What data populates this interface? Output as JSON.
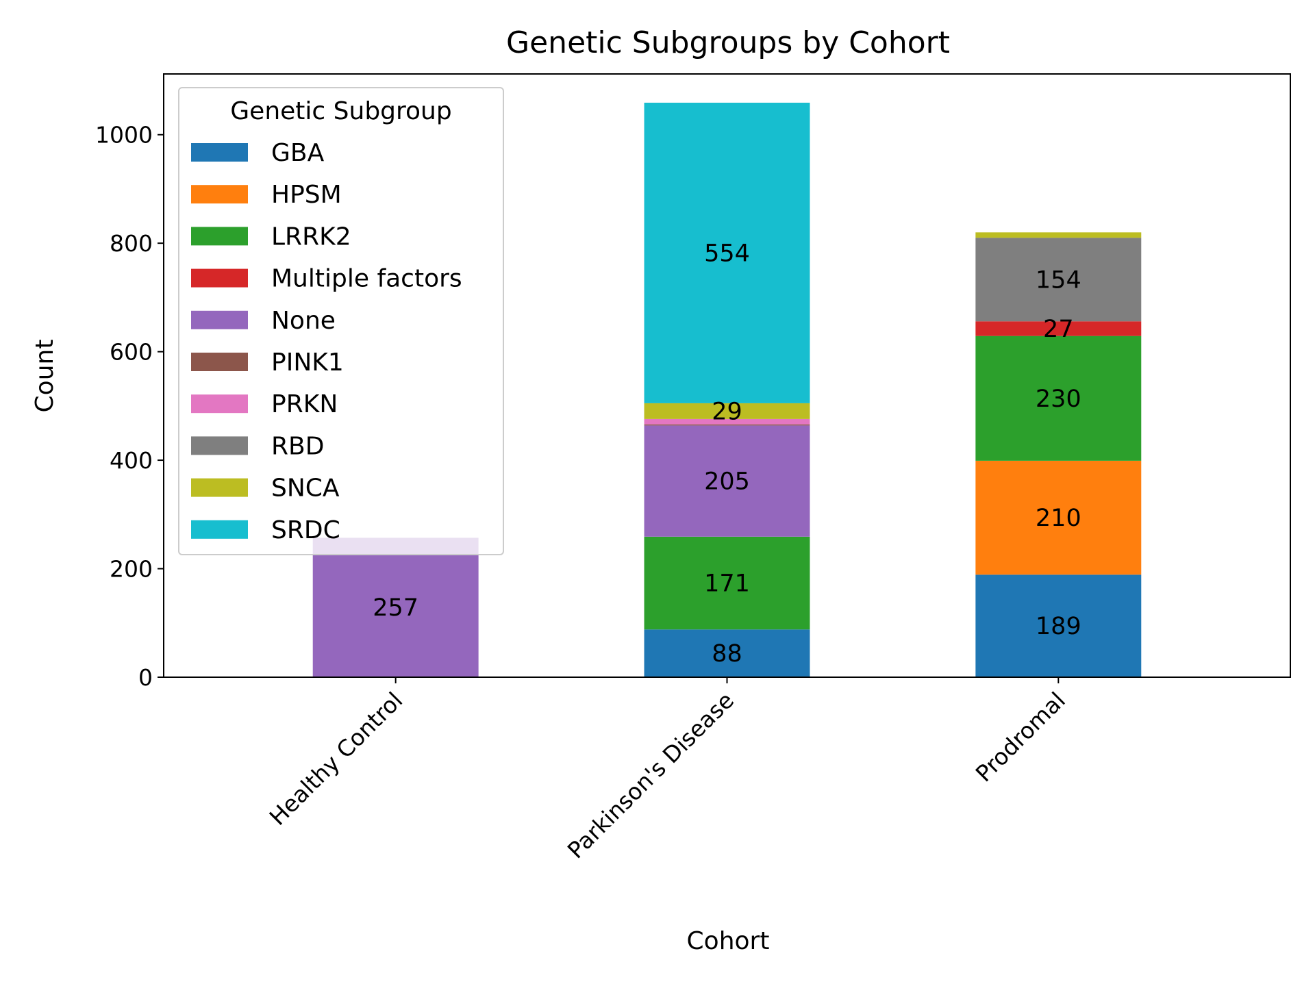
{
  "chart_data": {
    "type": "bar",
    "stacked": true,
    "title": "Genetic Subgroups by Cohort",
    "xlabel": "Cohort",
    "ylabel": "Count",
    "ylim": [
      0,
      1112
    ],
    "yticks": [
      0,
      200,
      400,
      600,
      800,
      1000
    ],
    "grid": false,
    "categories": [
      "Healthy Control",
      "Parkinson's Disease",
      "Prodromal"
    ],
    "legend": {
      "title": "Genetic Subgroup",
      "placement": "top-left"
    },
    "series": [
      {
        "name": "GBA",
        "color": "#1f77b4",
        "values": [
          0,
          88,
          189
        ]
      },
      {
        "name": "HPSM",
        "color": "#ff7f0e",
        "values": [
          0,
          0,
          210
        ]
      },
      {
        "name": "LRRK2",
        "color": "#2ca02c",
        "values": [
          0,
          171,
          230
        ]
      },
      {
        "name": "Multiple factors",
        "color": "#d62728",
        "values": [
          0,
          0,
          27
        ]
      },
      {
        "name": "None",
        "color": "#9467bd",
        "values": [
          257,
          205,
          0
        ]
      },
      {
        "name": "PINK1",
        "color": "#8c564b",
        "values": [
          0,
          2,
          0
        ]
      },
      {
        "name": "PRKN",
        "color": "#e377c2",
        "values": [
          0,
          10,
          0
        ]
      },
      {
        "name": "RBD",
        "color": "#7f7f7f",
        "values": [
          0,
          0,
          154
        ]
      },
      {
        "name": "SNCA",
        "color": "#bcbd22",
        "values": [
          0,
          29,
          10
        ]
      },
      {
        "name": "SRDC",
        "color": "#17becf",
        "values": [
          0,
          554,
          0
        ]
      }
    ],
    "data_labels": [
      {
        "category": "Healthy Control",
        "series": "None",
        "text": "257"
      },
      {
        "category": "Parkinson's Disease",
        "series": "GBA",
        "text": "88"
      },
      {
        "category": "Parkinson's Disease",
        "series": "LRRK2",
        "text": "171"
      },
      {
        "category": "Parkinson's Disease",
        "series": "None",
        "text": "205"
      },
      {
        "category": "Parkinson's Disease",
        "series": "SNCA",
        "text": "29"
      },
      {
        "category": "Parkinson's Disease",
        "series": "SRDC",
        "text": "554"
      },
      {
        "category": "Prodromal",
        "series": "GBA",
        "text": "189"
      },
      {
        "category": "Prodromal",
        "series": "HPSM",
        "text": "210"
      },
      {
        "category": "Prodromal",
        "series": "LRRK2",
        "text": "230"
      },
      {
        "category": "Prodromal",
        "series": "Multiple factors",
        "text": "27"
      },
      {
        "category": "Prodromal",
        "series": "RBD",
        "text": "154"
      }
    ]
  }
}
